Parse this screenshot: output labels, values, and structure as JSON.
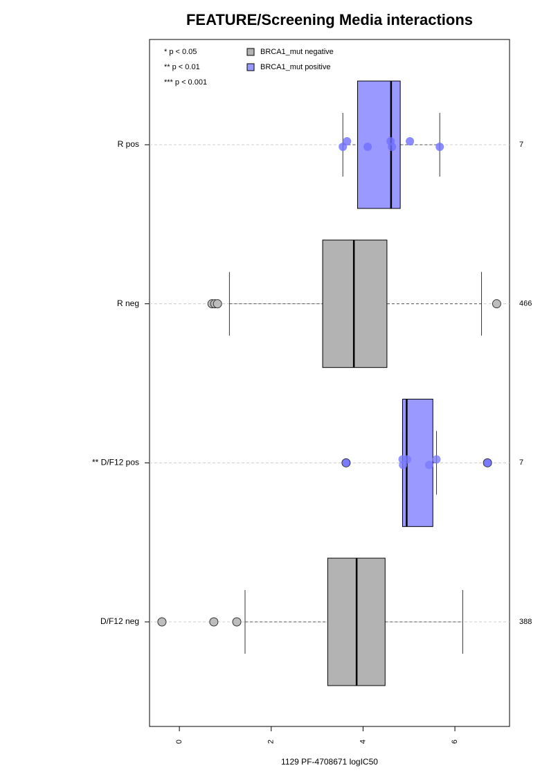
{
  "chart_data": {
    "type": "box",
    "title": "FEATURE/Screening Media interactions",
    "x_label": "1129 PF-4708671 logIC50",
    "categories": [
      "R pos",
      "R neg",
      "** D/F12 pos",
      "D/F12 neg"
    ],
    "counts": [
      7,
      466,
      7,
      388
    ],
    "colors": [
      "#9999ff",
      "#b3b3b3",
      "#9999ff",
      "#b3b3b3"
    ],
    "point_colors": [
      "#6f6fff",
      "#bdbdbd",
      "#7a7aff",
      "#bdbdbd"
    ],
    "boxes": [
      {
        "min": 3.56,
        "q1": 3.88,
        "median": 4.61,
        "q3": 4.81,
        "max": 5.67,
        "points": [
          3.56,
          3.65,
          4.1,
          4.6,
          4.63,
          5.02,
          5.67
        ]
      },
      {
        "min": 1.09,
        "q1": 3.12,
        "median": 3.8,
        "q3": 4.52,
        "max": 6.58,
        "points": [
          0.71,
          0.77,
          0.83,
          6.91
        ]
      },
      {
        "min": 4.86,
        "q1": 4.86,
        "median": 4.95,
        "q3": 5.52,
        "max": 5.6,
        "points": [
          3.63,
          4.86,
          4.87,
          4.96,
          5.44,
          5.6,
          6.71
        ]
      },
      {
        "min": 1.43,
        "q1": 3.23,
        "median": 3.86,
        "q3": 4.48,
        "max": 6.17,
        "points": [
          -0.38,
          0.75,
          1.25
        ]
      }
    ],
    "xlim": [
      -0.65,
      7.19
    ],
    "xticks": [
      0,
      2,
      4,
      6
    ],
    "significance_legend": [
      "* p < 0.05",
      "** p < 0.01",
      "*** p < 0.001"
    ],
    "legend": [
      {
        "name": "BRCA1_mut negative",
        "color": "#b3b3b3"
      },
      {
        "name": "BRCA1_mut positive",
        "color": "#9999ff"
      }
    ],
    "grid": true
  }
}
